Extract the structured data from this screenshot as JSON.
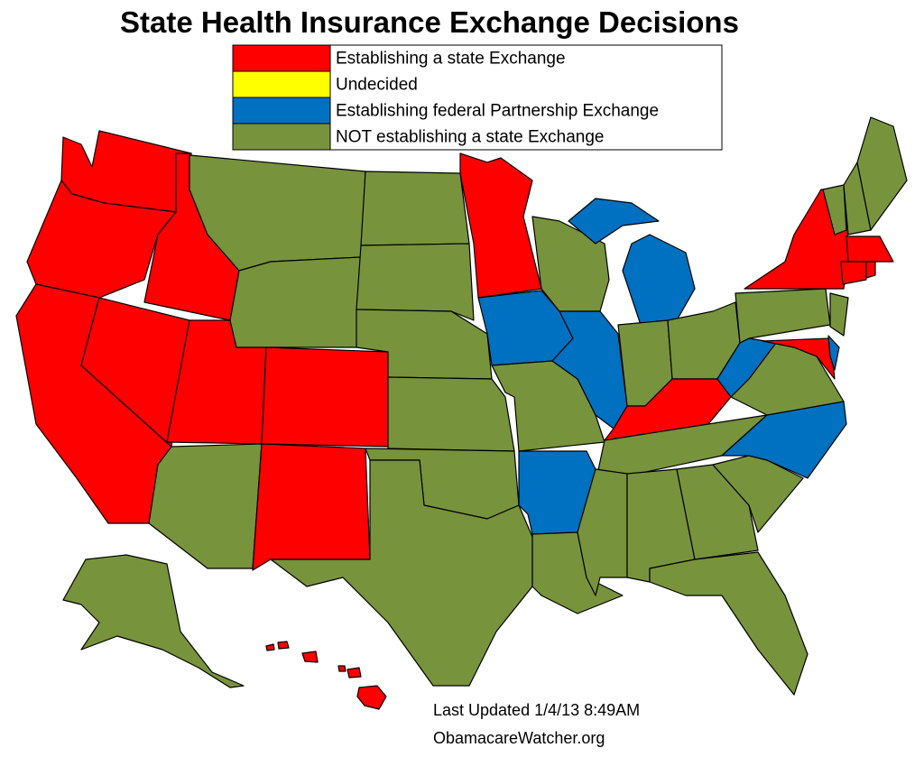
{
  "title": "State Health Insurance Exchange Decisions",
  "legend": [
    {
      "label": "Establishing a state Exchange",
      "color": "#ff0000"
    },
    {
      "label": "Undecided",
      "color": "#ffff00"
    },
    {
      "label": "Establishing federal Partnership Exchange",
      "color": "#0070c0"
    },
    {
      "label": "NOT establishing a state Exchange",
      "color": "#77933c"
    }
  ],
  "footer": [
    "Last Updated 1/4/13 8:49AM",
    "ObamacareWatcher.org"
  ]
}
